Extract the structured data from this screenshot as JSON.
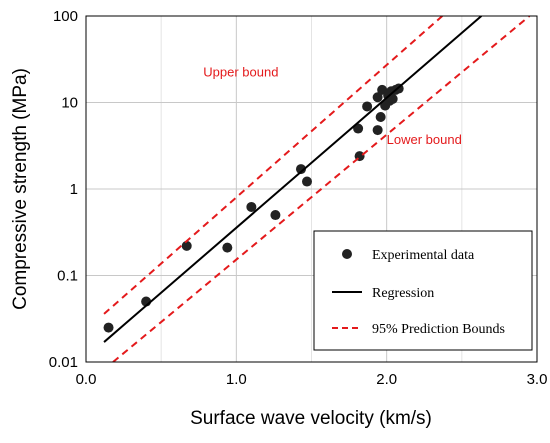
{
  "chart_data": {
    "type": "scatter",
    "xlabel": "Surface wave velocity (km/s)",
    "ylabel": "Compressive strength (MPa)",
    "xlim": [
      0.0,
      3.0
    ],
    "ylim": [
      0.01,
      100
    ],
    "yscale": "log",
    "grid": true,
    "x_ticks": [
      "0.0",
      "1.0",
      "2.0",
      "3.0"
    ],
    "y_ticks": [
      "0.01",
      "0.1",
      "1",
      "10",
      "100"
    ],
    "legend_position": "bottom-right",
    "series": [
      {
        "name": "Experimental data",
        "kind": "points",
        "color": "#222222",
        "points": [
          [
            0.15,
            0.025
          ],
          [
            0.4,
            0.05
          ],
          [
            0.67,
            0.22
          ],
          [
            0.94,
            0.21
          ],
          [
            1.1,
            0.62
          ],
          [
            1.26,
            0.5
          ],
          [
            1.43,
            1.7
          ],
          [
            1.47,
            1.22
          ],
          [
            1.81,
            5.0
          ],
          [
            1.82,
            2.4
          ],
          [
            1.87,
            9.0
          ],
          [
            1.94,
            4.8
          ],
          [
            1.94,
            11.5
          ],
          [
            1.96,
            6.8
          ],
          [
            1.97,
            14.0
          ],
          [
            1.99,
            9.2
          ],
          [
            2.01,
            12.0
          ],
          [
            2.02,
            10.5
          ],
          [
            2.03,
            13.5
          ],
          [
            2.04,
            11.0
          ],
          [
            2.06,
            14.0
          ],
          [
            2.08,
            14.5
          ]
        ]
      },
      {
        "name": "Regression",
        "kind": "line",
        "color": "#000000",
        "points": [
          [
            0.12,
            0.017
          ],
          [
            2.63,
            100
          ]
        ]
      },
      {
        "name": "95% Prediction Bounds",
        "kind": "dashed",
        "color": "#e41a1c",
        "lines": [
          [
            [
              0.12,
              0.036
            ],
            [
              2.37,
              100
            ]
          ],
          [
            [
              0.18,
              0.01
            ],
            [
              2.95,
              100
            ]
          ]
        ]
      }
    ],
    "annotations": [
      {
        "text": "Upper bound",
        "x": 0.78,
        "y": 20,
        "color": "#e41a1c"
      },
      {
        "text": "Lower bound",
        "x": 2.0,
        "y": 3.3,
        "color": "#e41a1c"
      }
    ]
  }
}
